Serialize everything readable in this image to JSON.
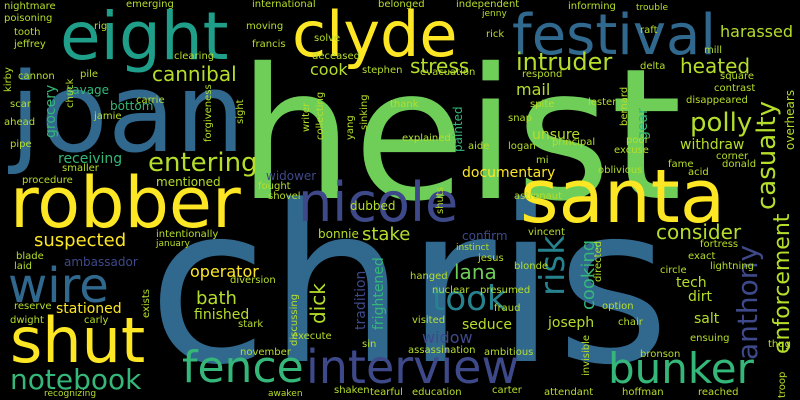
{
  "words": {
    "chris": "chris",
    "heist": "heist",
    "joan": "joan",
    "robber": "robber",
    "santa": "santa",
    "eight": "eight",
    "clyde": "clyde",
    "festival": "festival",
    "shut": "shut",
    "nicole": "nicole",
    "interview": "interview",
    "fence": "fence",
    "bunker": "bunker",
    "wire": "wire",
    "notebook": "notebook",
    "took": "took",
    "intruder": "intruder",
    "risk": "risk",
    "entering": "entering",
    "polly": "polly",
    "anthony": "anthony",
    "casualty": "casualty",
    "enforcement": "enforcement",
    "heated": "heated",
    "harassed": "harassed",
    "cannibal": "cannibal",
    "stress": "stress",
    "cook": "cook",
    "consider": "consider",
    "suspected": "suspected",
    "stake": "stake",
    "lana": "lana",
    "dick": "dick",
    "bath": "bath",
    "operator": "operator",
    "finished": "finished",
    "stationed": "stationed",
    "widow": "widow",
    "documentary": "documentary",
    "tradition": "tradition",
    "frightened": "frightened",
    "seduce": "seduce",
    "joseph": "joseph",
    "cooking": "cooking",
    "salt": "salt",
    "tech": "tech",
    "dirt": "dirt",
    "withdraw": "withdraw",
    "mentioned": "mentioned",
    "receiving": "receiving",
    "grocery": "grocery",
    "savage": "savage",
    "bottom": "bottom",
    "mail": "mail",
    "dubbed": "dubbed",
    "widower": "widower",
    "bonnie": "bonnie",
    "confirm": "confirm",
    "unsure": "unsure",
    "painted": "painted",
    "ambassador": "ambassador",
    "gear": "gear",
    "emerging": "emerging",
    "nightmare": "nightmare",
    "international": "international",
    "independent": "independent",
    "informing": "informing",
    "poisoning": "poisoning",
    "belonged": "belonged",
    "rig": "rig",
    "tooth": "tooth",
    "jeffrey": "jeffrey",
    "rick": "rick",
    "moving": "moving",
    "solve": "solve",
    "francis": "francis",
    "clearing": "clearing",
    "deceased": "deceased",
    "stephen": "stephen",
    "evacuation": "evacuation",
    "respond": "respond",
    "raft": "raft",
    "mill": "mill",
    "delta": "delta",
    "square": "square",
    "contrast": "contrast",
    "disappeared": "disappeared",
    "overhears": "overhears",
    "kirby": "kirby",
    "cannon": "cannon",
    "pile": "pile",
    "chuck": "chuck",
    "scar": "scar",
    "ahead": "ahead",
    "pipe": "pipe",
    "carrie": "carrie",
    "jamie": "jamie",
    "forgiveness": "forgiveness",
    "sight": "sight",
    "writer": "writer",
    "collecting": "collecting",
    "sinking": "sinking",
    "yang": "yang",
    "thank": "thank",
    "explained": "explained",
    "aide": "aide",
    "logan": "logan",
    "principal": "principal",
    "snap": "snap",
    "spite": "spite",
    "lester": "lester",
    "bernard": "bernard",
    "poor": "poor",
    "excuse": "excuse",
    "fame": "fame",
    "acid": "acid",
    "donald": "donald",
    "corner": "corner",
    "smaller": "smaller",
    "procedure": "procedure",
    "fought": "fought",
    "shovel": "shovel",
    "mi": "mi",
    "oblivious": "oblivious",
    "astronaut": "astronaut",
    "shuts": "shuts",
    "vincent": "vincent",
    "jesus": "jesus",
    "blonde": "blonde",
    "directed": "directed",
    "exact": "exact",
    "lightning": "lightning",
    "fortress": "fortress",
    "circle": "circle",
    "intentionally": "intentionally",
    "blade": "blade",
    "laid": "laid",
    "diversion": "diversion",
    "hanged": "hanged",
    "nuclear": "nuclear",
    "presumed": "presumed",
    "reserve": "reserve",
    "dwight": "dwight",
    "carly": "carly",
    "exists": "exists",
    "stark": "stark",
    "visited": "visited",
    "fraud": "fraud",
    "option": "option",
    "chair": "chair",
    "ensuing": "ensuing",
    "thug": "thug",
    "discussing": "discussing",
    "execute": "execute",
    "november": "november",
    "sin": "sin",
    "assassination": "assassination",
    "ambitious": "ambitious",
    "invisible": "invisible",
    "bronson": "bronson",
    "shaken": "shaken",
    "tearful": "tearful",
    "education": "education",
    "carter": "carter",
    "attendant": "attendant",
    "hoffman": "hoffman",
    "reached": "reached",
    "troop": "troop",
    "recognizing": "recognizing",
    "awaken": "awaken",
    "trouble": "trouble",
    "jenny": "jenny",
    "january": "january",
    "instinct": "instinct"
  },
  "palette": {
    "yellow": "#fde725",
    "light_green": "#b5de2b",
    "green": "#6ece58",
    "mid_green": "#35b779",
    "teal": "#1f9e89",
    "blue_teal": "#26828e",
    "blue": "#31688e",
    "indigo": "#3e4989",
    "purple": "#482878",
    "dark_purple": "#440154",
    "background": "#000000"
  }
}
